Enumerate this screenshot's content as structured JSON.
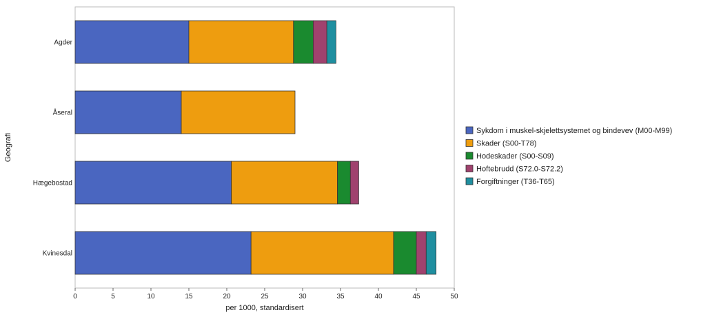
{
  "chart_data": {
    "type": "bar",
    "orientation": "horizontal",
    "stacked": true,
    "categories": [
      "Agder",
      "Åseral",
      "Hægebostad",
      "Kvinesdal"
    ],
    "series": [
      {
        "name": "Sykdom i muskel-skjelettsystemet og bindevev (M00-M99)",
        "color": "#4a66c0",
        "values": [
          15.0,
          14.0,
          20.6,
          23.2
        ]
      },
      {
        "name": "Skader (S00-T78)",
        "color": "#ee9d0f",
        "values": [
          13.8,
          15.0,
          14.0,
          18.8
        ]
      },
      {
        "name": "Hodeskader (S00-S09)",
        "color": "#1a8a2f",
        "values": [
          2.6,
          0,
          1.7,
          3.0
        ]
      },
      {
        "name": "Hoftebrudd (S72.0-S72.2)",
        "color": "#a0426e",
        "values": [
          1.8,
          0,
          1.1,
          1.3
        ]
      },
      {
        "name": "Forgiftninger (T36-T65)",
        "color": "#1f8fa0",
        "values": [
          1.2,
          0,
          0,
          1.3
        ]
      }
    ],
    "xlabel": "per 1000, standardisert",
    "ylabel": "Geografi",
    "xlim": [
      0,
      50
    ],
    "xticks": [
      "0",
      "5",
      "10",
      "15",
      "20",
      "25",
      "30",
      "35",
      "40",
      "45",
      "50"
    ],
    "grid": false,
    "legend_position": "right"
  }
}
